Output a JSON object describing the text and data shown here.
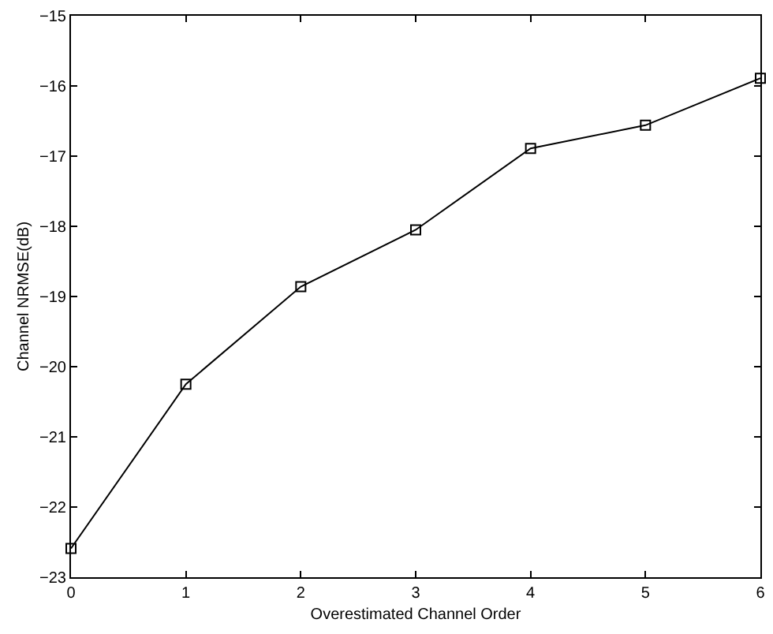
{
  "chart_data": {
    "type": "line",
    "xlabel": "Overestimated Channel Order",
    "ylabel": "Channel NRMSE(dB)",
    "x": [
      0,
      1,
      2,
      3,
      4,
      5,
      6
    ],
    "series": [
      {
        "color": "#000000",
        "values": [
          -22.59,
          -20.25,
          -18.86,
          -18.05,
          -16.89,
          -16.56,
          -15.89
        ]
      }
    ],
    "xlim": [
      0,
      6
    ],
    "xticks": [
      0,
      1,
      2,
      3,
      4,
      5,
      6
    ],
    "ylim": [
      -23,
      -15
    ],
    "yticks": [
      {
        "value": -23,
        "label": "−23"
      },
      {
        "value": -22,
        "label": "−22"
      },
      {
        "value": -21,
        "label": "−21"
      },
      {
        "value": -20,
        "label": "−20"
      },
      {
        "value": -19,
        "label": "−19"
      },
      {
        "value": -18,
        "label": "−18"
      },
      {
        "value": -17,
        "label": "−17"
      },
      {
        "value": -16,
        "label": "−16"
      },
      {
        "value": -15,
        "label": "−15"
      }
    ],
    "grid": false,
    "marker": "square",
    "line_style": "solid"
  }
}
